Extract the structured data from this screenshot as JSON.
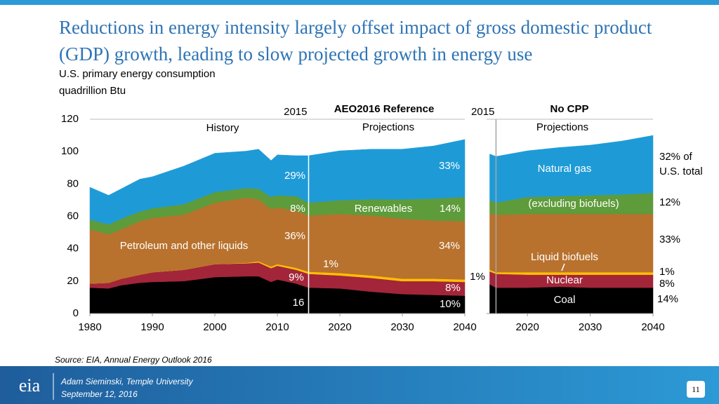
{
  "header": {
    "title": "Reductions in energy intensity largely offset impact of gross domestic product (GDP) growth, leading to slow projected growth in energy use",
    "subtitle": "U.S. primary energy consumption",
    "unit": "quadrillion Btu"
  },
  "chart_data": [
    {
      "type": "area",
      "stacked": true,
      "title": "AEO2016 Reference",
      "x": [
        1980,
        1983,
        1985,
        1988,
        1990,
        1995,
        2000,
        2005,
        2007,
        2009,
        2010,
        2013,
        2015,
        2020,
        2025,
        2030,
        2035,
        2040
      ],
      "xlim": [
        1980,
        2040
      ],
      "xticks": [
        1980,
        1990,
        2000,
        2010,
        2020,
        2030,
        2040
      ],
      "ylim": [
        0,
        120
      ],
      "yticks": [
        0,
        20,
        40,
        60,
        80,
        100,
        120
      ],
      "marker": {
        "value": 2015,
        "label": "2015",
        "color": "#ffffff"
      },
      "series": [
        {
          "color": "#000000",
          "values": [
            16,
            15.5,
            17.5,
            19,
            19.5,
            20,
            22.5,
            23,
            23,
            19.5,
            21,
            18.5,
            16,
            15.5,
            13.5,
            12,
            11.5,
            11
          ]
        },
        {
          "color": "#a3253a",
          "values": [
            2.5,
            3.5,
            4,
            5,
            6,
            7,
            8,
            8,
            8.5,
            8.5,
            8.5,
            8.5,
            8.5,
            8,
            8.5,
            8,
            8.5,
            8.5
          ]
        },
        {
          "color": "#ffc000",
          "values": [
            0,
            0,
            0,
            0,
            0,
            0,
            0,
            0.3,
            0.7,
            1,
            1,
            1.2,
            1.3,
            1.5,
            1.5,
            1.5,
            1.5,
            1.5
          ]
        },
        {
          "name": "Petroleum and other liquids",
          "color": "#b8722e",
          "values": [
            33.5,
            30,
            30.5,
            33,
            33.5,
            34,
            38,
            40.2,
            38.3,
            35.5,
            35,
            35.3,
            34.7,
            36.5,
            37,
            37,
            36,
            36
          ]
        },
        {
          "name": "Renewables",
          "color": "#5e9b3a",
          "values": [
            6,
            6,
            6.5,
            6,
            6,
            6.5,
            6.5,
            6,
            6.5,
            7.5,
            7.5,
            9,
            8,
            8.5,
            10,
            12,
            13.5,
            15
          ]
        },
        {
          "color": "#1e9bd7",
          "values": [
            20,
            18,
            18.5,
            20,
            19.5,
            23.5,
            24,
            22.8,
            24.5,
            22.5,
            25,
            25,
            29,
            30.5,
            31,
            31,
            32.5,
            35.5
          ]
        }
      ],
      "annotations": [
        "History",
        "Projections",
        "29%",
        "33%",
        "8%",
        "14%",
        "36%",
        "34%",
        "1%",
        "9%",
        "8%",
        "16",
        "10%"
      ]
    },
    {
      "type": "area",
      "stacked": true,
      "title": "No CPP",
      "x": [
        2014,
        2015,
        2020,
        2025,
        2030,
        2035,
        2040
      ],
      "xlim": [
        2013.5,
        2040
      ],
      "xticks": [
        2020,
        2030,
        2040
      ],
      "ylim": [
        0,
        120
      ],
      "marker": {
        "value": 2015,
        "label": "2015",
        "color": "#a6a6a6"
      },
      "series": [
        {
          "name": "Coal",
          "color": "#000000",
          "values": [
            18,
            16,
            16,
            16.5,
            16,
            16,
            16
          ]
        },
        {
          "name": "Nuclear",
          "color": "#a3253a",
          "values": [
            8,
            8.5,
            8,
            7.5,
            8,
            8,
            8
          ]
        },
        {
          "name": "Liquid biofuels",
          "color": "#ffc000",
          "values": [
            1,
            1,
            1.5,
            1.5,
            1.5,
            1.5,
            1.5
          ]
        },
        {
          "color": "#b8722e",
          "values": [
            35,
            35.5,
            36,
            36,
            36,
            36,
            36
          ]
        },
        {
          "name": "(excluding biofuels)",
          "color": "#5e9b3a",
          "values": [
            8,
            7.5,
            10.5,
            11,
            11.5,
            12,
            13
          ]
        },
        {
          "name": "Natural gas",
          "color": "#1e9bd7",
          "values": [
            28.5,
            28.5,
            28.5,
            30,
            31,
            33,
            35.5
          ]
        }
      ],
      "annotations": [
        "Projections",
        "1%",
        "32% of",
        "U.S. total",
        "12%",
        "33%",
        "1%",
        "8%",
        "14%"
      ]
    }
  ],
  "footer": {
    "source": "Source:  EIA, Annual Energy Outlook 2016",
    "logo": "eia",
    "author": "Adam Sieminski, Temple University",
    "date": "September 12, 2016",
    "page": 11
  }
}
